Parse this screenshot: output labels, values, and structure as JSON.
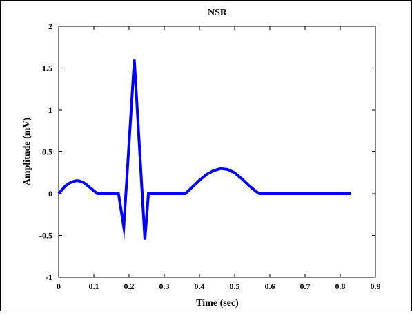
{
  "chart_data": {
    "type": "line",
    "title": "NSR",
    "xlabel": "Time (sec)",
    "ylabel": "Amplitude (mV)",
    "xlim": [
      0,
      0.9
    ],
    "ylim": [
      -1,
      2
    ],
    "xticks": [
      "0",
      "0.1",
      "0.2",
      "0.3",
      "0.4",
      "0.5",
      "0.6",
      "0.7",
      "0.8",
      "0.9"
    ],
    "xtick_values": [
      0,
      0.1,
      0.2,
      0.3,
      0.4,
      0.5,
      0.6,
      0.7,
      0.8,
      0.9
    ],
    "yticks": [
      "-1",
      "-0.5",
      "0",
      "0.5",
      "1",
      "1.5",
      "2"
    ],
    "ytick_values": [
      -1,
      -0.5,
      0,
      0.5,
      1,
      1.5,
      2
    ],
    "grid": false,
    "legend": "none",
    "line_color": "#0000ff",
    "series": [
      {
        "x": [
          0,
          0.01,
          0.02,
          0.03,
          0.04,
          0.05,
          0.055,
          0.06,
          0.07,
          0.08,
          0.09,
          0.1,
          0.11,
          0.17,
          0.185,
          0.215,
          0.245,
          0.255,
          0.36,
          0.38,
          0.4,
          0.42,
          0.44,
          0.46,
          0.48,
          0.5,
          0.52,
          0.54,
          0.56,
          0.57,
          0.83
        ],
        "y": [
          0,
          0.05,
          0.095,
          0.125,
          0.145,
          0.155,
          0.155,
          0.15,
          0.135,
          0.105,
          0.07,
          0.035,
          0,
          0,
          -0.4,
          1.6,
          -0.55,
          0,
          0,
          0.08,
          0.16,
          0.23,
          0.275,
          0.3,
          0.29,
          0.25,
          0.18,
          0.1,
          0.03,
          0,
          0
        ]
      }
    ]
  }
}
